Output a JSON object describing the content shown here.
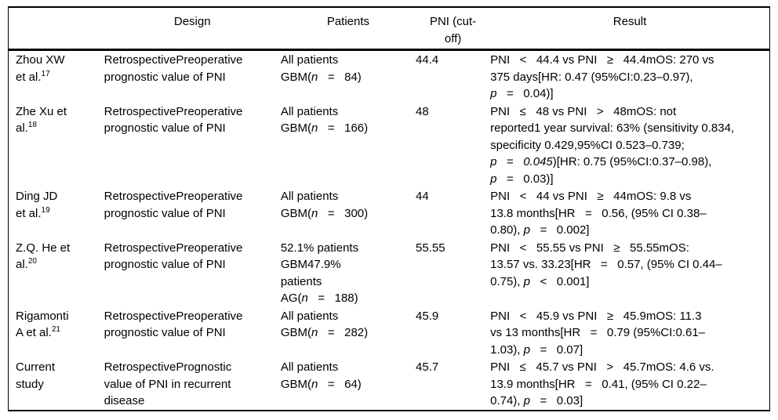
{
  "table": {
    "headers": {
      "study": "",
      "design": "Design",
      "patients": "Patients",
      "pni": "PNI (cut-off)",
      "result": "Result"
    },
    "rows": [
      {
        "study": "Zhou XW\net al.",
        "ref": "17",
        "design": "RetrospectivePreoperative\nprognostic value of PNI",
        "patients": [
          {
            "t": "All patients\nGBM("
          },
          {
            "t": "n",
            "i": true
          },
          {
            "t": "   =   84)"
          }
        ],
        "pni": "44.4",
        "result": [
          {
            "t": "PNI   <   44.4 vs PNI   ≥   44.4mOS: 270 vs\n375 days[HR: 0.47 (95%CI:0.23–0.97),\n"
          },
          {
            "t": "p",
            "i": true
          },
          {
            "t": "   =   0.04)]"
          }
        ]
      },
      {
        "study": "Zhe Xu et\nal.",
        "ref": "18",
        "design": "RetrospectivePreoperative\nprognostic value of PNI",
        "patients": [
          {
            "t": "All patients\nGBM("
          },
          {
            "t": "n",
            "i": true
          },
          {
            "t": "   =   166)"
          }
        ],
        "pni": "48",
        "result": [
          {
            "t": "PNI   ≤   48 vs PNI   >   48mOS: not\nreported1 year survival: 63% (sensitivity 0.834,\nspecificity 0.429,95%CI 0.523–0.739;\n"
          },
          {
            "t": "p",
            "i": true
          },
          {
            "t": "   =   "
          },
          {
            "t": "0.045",
            "i": true
          },
          {
            "t": ")[HR: 0.75 (95%CI:0.37–0.98),\n"
          },
          {
            "t": "p",
            "i": true
          },
          {
            "t": "   =   0.03)]"
          }
        ]
      },
      {
        "study": "Ding JD\net al.",
        "ref": "19",
        "design": "RetrospectivePreoperative\nprognostic value of PNI",
        "patients": [
          {
            "t": "All patients\nGBM("
          },
          {
            "t": "n",
            "i": true
          },
          {
            "t": "   =   300)"
          }
        ],
        "pni": "44",
        "result": [
          {
            "t": "PNI   <   44 vs PNI   ≥   44mOS: 9.8 vs\n13.8 months[HR   =   0.56, (95% CI 0.38–\n0.80), "
          },
          {
            "t": "p",
            "i": true
          },
          {
            "t": "   =   0.002]"
          }
        ]
      },
      {
        "study": "Z.Q. He et\nal.",
        "ref": "20",
        "design": "RetrospectivePreoperative\nprognostic value of PNI",
        "patients": [
          {
            "t": "52.1% patients\nGBM47.9%\npatients\nAG("
          },
          {
            "t": "n",
            "i": true
          },
          {
            "t": "   =   188)"
          }
        ],
        "pni": "55.55",
        "result": [
          {
            "t": "PNI   <   55.55 vs PNI   ≥   55.55mOS:\n13.57 vs. 33.23[HR   =   0.57, (95% CI 0.44–\n0.75), "
          },
          {
            "t": "p",
            "i": true
          },
          {
            "t": "   <   0.001]"
          }
        ]
      },
      {
        "study": "Rigamonti\nA et al.",
        "ref": "21",
        "design": "RetrospectivePreoperative\nprognostic value of PNI",
        "patients": [
          {
            "t": "All patients\nGBM("
          },
          {
            "t": "n",
            "i": true
          },
          {
            "t": "   =   282)"
          }
        ],
        "pni": "45.9",
        "result": [
          {
            "t": "PNI   <   45.9 vs PNI   ≥   45.9mOS: 11.3\nvs 13 months[HR   =   0.79 (95%CI:0.61–\n1.03), "
          },
          {
            "t": "p",
            "i": true
          },
          {
            "t": "   =   0.07]"
          }
        ]
      },
      {
        "study": "Current\nstudy",
        "ref": "",
        "design": "RetrospectivePrognostic\nvalue of PNI in recurrent\ndisease",
        "patients": [
          {
            "t": "All patients\nGBM("
          },
          {
            "t": "n",
            "i": true
          },
          {
            "t": "   =   64)"
          }
        ],
        "pni": "45.7",
        "result": [
          {
            "t": "PNI   ≤   45.7 vs PNI   >   45.7mOS: 4.6 vs.\n13.9 months[HR   =   0.41, (95% CI 0.22–\n0.74), "
          },
          {
            "t": "p",
            "i": true
          },
          {
            "t": "   =   0.03]"
          }
        ]
      }
    ]
  }
}
